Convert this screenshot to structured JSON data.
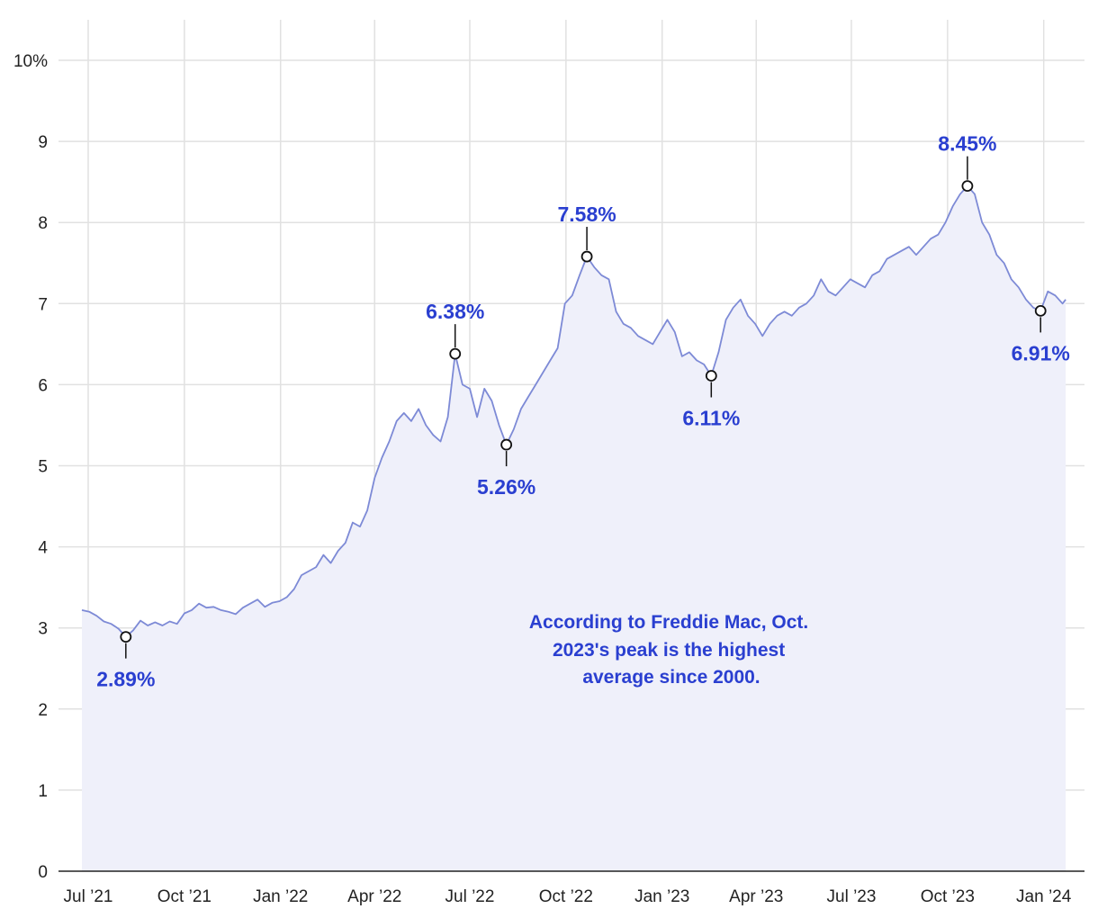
{
  "colors": {
    "accent": "#2a3fd0",
    "line": "#7d8ad6",
    "area": "#eff0fa",
    "grid": "#e1e1e1",
    "axis": "#222222",
    "marker_stroke": "#111111"
  },
  "chart_data": {
    "type": "area",
    "title": "",
    "xlabel": "",
    "ylabel": "",
    "ylim": [
      0,
      10
    ],
    "xlim": [
      "2021-06-24",
      "2024-01-24"
    ],
    "grid": true,
    "y_ticks": [
      {
        "value": 0,
        "label": "0"
      },
      {
        "value": 1,
        "label": "1"
      },
      {
        "value": 2,
        "label": "2"
      },
      {
        "value": 3,
        "label": "3"
      },
      {
        "value": 4,
        "label": "4"
      },
      {
        "value": 5,
        "label": "5"
      },
      {
        "value": 6,
        "label": "6"
      },
      {
        "value": 7,
        "label": "7"
      },
      {
        "value": 8,
        "label": "8"
      },
      {
        "value": 9,
        "label": "9"
      },
      {
        "value": 10,
        "label": "10%"
      }
    ],
    "x_ticks": [
      {
        "date": "2021-07-01",
        "label": "Jul ’21"
      },
      {
        "date": "2021-10-01",
        "label": "Oct ’21"
      },
      {
        "date": "2022-01-01",
        "label": "Jan ’22"
      },
      {
        "date": "2022-04-01",
        "label": "Apr ’22"
      },
      {
        "date": "2022-07-01",
        "label": "Jul ’22"
      },
      {
        "date": "2022-10-01",
        "label": "Oct ’22"
      },
      {
        "date": "2023-01-01",
        "label": "Jan ’23"
      },
      {
        "date": "2023-04-01",
        "label": "Apr ’23"
      },
      {
        "date": "2023-07-01",
        "label": "Jul ’23"
      },
      {
        "date": "2023-10-01",
        "label": "Oct ’23"
      },
      {
        "date": "2024-01-01",
        "label": "Jan ’24"
      }
    ],
    "series": [
      {
        "points": [
          [
            "2021-06-25",
            3.22
          ],
          [
            "2021-07-02",
            3.2
          ],
          [
            "2021-07-09",
            3.15
          ],
          [
            "2021-07-16",
            3.08
          ],
          [
            "2021-07-23",
            3.05
          ],
          [
            "2021-07-30",
            2.99
          ],
          [
            "2021-08-06",
            2.89
          ],
          [
            "2021-08-13",
            2.97
          ],
          [
            "2021-08-20",
            3.09
          ],
          [
            "2021-08-27",
            3.03
          ],
          [
            "2021-09-03",
            3.07
          ],
          [
            "2021-09-10",
            3.03
          ],
          [
            "2021-09-17",
            3.08
          ],
          [
            "2021-09-24",
            3.05
          ],
          [
            "2021-10-01",
            3.18
          ],
          [
            "2021-10-08",
            3.22
          ],
          [
            "2021-10-15",
            3.3
          ],
          [
            "2021-10-22",
            3.25
          ],
          [
            "2021-10-29",
            3.26
          ],
          [
            "2021-11-05",
            3.22
          ],
          [
            "2021-11-12",
            3.2
          ],
          [
            "2021-11-19",
            3.17
          ],
          [
            "2021-11-26",
            3.25
          ],
          [
            "2021-12-03",
            3.3
          ],
          [
            "2021-12-10",
            3.35
          ],
          [
            "2021-12-17",
            3.26
          ],
          [
            "2021-12-24",
            3.31
          ],
          [
            "2021-12-31",
            3.33
          ],
          [
            "2022-01-07",
            3.38
          ],
          [
            "2022-01-14",
            3.48
          ],
          [
            "2022-01-21",
            3.65
          ],
          [
            "2022-01-28",
            3.7
          ],
          [
            "2022-02-04",
            3.75
          ],
          [
            "2022-02-11",
            3.9
          ],
          [
            "2022-02-18",
            3.8
          ],
          [
            "2022-02-25",
            3.95
          ],
          [
            "2022-03-04",
            4.05
          ],
          [
            "2022-03-11",
            4.3
          ],
          [
            "2022-03-18",
            4.25
          ],
          [
            "2022-03-25",
            4.45
          ],
          [
            "2022-04-01",
            4.85
          ],
          [
            "2022-04-08",
            5.1
          ],
          [
            "2022-04-15",
            5.3
          ],
          [
            "2022-04-22",
            5.55
          ],
          [
            "2022-04-29",
            5.65
          ],
          [
            "2022-05-06",
            5.55
          ],
          [
            "2022-05-13",
            5.7
          ],
          [
            "2022-05-20",
            5.5
          ],
          [
            "2022-05-27",
            5.38
          ],
          [
            "2022-06-03",
            5.3
          ],
          [
            "2022-06-10",
            5.6
          ],
          [
            "2022-06-17",
            6.38
          ],
          [
            "2022-06-24",
            6.0
          ],
          [
            "2022-07-01",
            5.95
          ],
          [
            "2022-07-08",
            5.6
          ],
          [
            "2022-07-15",
            5.95
          ],
          [
            "2022-07-22",
            5.8
          ],
          [
            "2022-07-29",
            5.5
          ],
          [
            "2022-08-05",
            5.26
          ],
          [
            "2022-08-12",
            5.45
          ],
          [
            "2022-08-19",
            5.7
          ],
          [
            "2022-08-26",
            5.85
          ],
          [
            "2022-09-02",
            6.0
          ],
          [
            "2022-09-09",
            6.15
          ],
          [
            "2022-09-16",
            6.3
          ],
          [
            "2022-09-23",
            6.45
          ],
          [
            "2022-09-30",
            7.0
          ],
          [
            "2022-10-07",
            7.1
          ],
          [
            "2022-10-14",
            7.35
          ],
          [
            "2022-10-21",
            7.58
          ],
          [
            "2022-10-28",
            7.45
          ],
          [
            "2022-11-04",
            7.35
          ],
          [
            "2022-11-11",
            7.3
          ],
          [
            "2022-11-18",
            6.9
          ],
          [
            "2022-11-25",
            6.75
          ],
          [
            "2022-12-02",
            6.7
          ],
          [
            "2022-12-09",
            6.6
          ],
          [
            "2022-12-16",
            6.55
          ],
          [
            "2022-12-23",
            6.5
          ],
          [
            "2022-12-30",
            6.65
          ],
          [
            "2023-01-06",
            6.8
          ],
          [
            "2023-01-13",
            6.65
          ],
          [
            "2023-01-20",
            6.35
          ],
          [
            "2023-01-27",
            6.4
          ],
          [
            "2023-02-03",
            6.3
          ],
          [
            "2023-02-10",
            6.25
          ],
          [
            "2023-02-17",
            6.11
          ],
          [
            "2023-02-24",
            6.4
          ],
          [
            "2023-03-03",
            6.8
          ],
          [
            "2023-03-10",
            6.95
          ],
          [
            "2023-03-17",
            7.05
          ],
          [
            "2023-03-24",
            6.85
          ],
          [
            "2023-03-31",
            6.75
          ],
          [
            "2023-04-07",
            6.6
          ],
          [
            "2023-04-14",
            6.75
          ],
          [
            "2023-04-21",
            6.85
          ],
          [
            "2023-04-28",
            6.9
          ],
          [
            "2023-05-05",
            6.85
          ],
          [
            "2023-05-12",
            6.95
          ],
          [
            "2023-05-19",
            7.0
          ],
          [
            "2023-05-26",
            7.1
          ],
          [
            "2023-06-02",
            7.3
          ],
          [
            "2023-06-09",
            7.15
          ],
          [
            "2023-06-16",
            7.1
          ],
          [
            "2023-06-23",
            7.2
          ],
          [
            "2023-06-30",
            7.3
          ],
          [
            "2023-07-07",
            7.25
          ],
          [
            "2023-07-14",
            7.2
          ],
          [
            "2023-07-21",
            7.35
          ],
          [
            "2023-07-28",
            7.4
          ],
          [
            "2023-08-04",
            7.55
          ],
          [
            "2023-08-11",
            7.6
          ],
          [
            "2023-08-18",
            7.65
          ],
          [
            "2023-08-25",
            7.7
          ],
          [
            "2023-09-01",
            7.6
          ],
          [
            "2023-09-08",
            7.7
          ],
          [
            "2023-09-15",
            7.8
          ],
          [
            "2023-09-22",
            7.85
          ],
          [
            "2023-09-29",
            8.0
          ],
          [
            "2023-10-06",
            8.2
          ],
          [
            "2023-10-13",
            8.35
          ],
          [
            "2023-10-20",
            8.45
          ],
          [
            "2023-10-27",
            8.35
          ],
          [
            "2023-11-03",
            8.0
          ],
          [
            "2023-11-10",
            7.85
          ],
          [
            "2023-11-17",
            7.6
          ],
          [
            "2023-11-24",
            7.5
          ],
          [
            "2023-12-01",
            7.3
          ],
          [
            "2023-12-08",
            7.2
          ],
          [
            "2023-12-15",
            7.05
          ],
          [
            "2023-12-22",
            6.95
          ],
          [
            "2023-12-29",
            6.91
          ],
          [
            "2024-01-05",
            7.15
          ],
          [
            "2024-01-12",
            7.1
          ],
          [
            "2024-01-19",
            7.0
          ],
          [
            "2024-01-22",
            7.05
          ]
        ]
      }
    ],
    "annotations": [
      {
        "date": "2021-08-06",
        "value": 2.89,
        "label": "2.89%",
        "position": "below"
      },
      {
        "date": "2022-06-17",
        "value": 6.38,
        "label": "6.38%",
        "position": "above"
      },
      {
        "date": "2022-08-05",
        "value": 5.26,
        "label": "5.26%",
        "position": "below"
      },
      {
        "date": "2022-10-21",
        "value": 7.58,
        "label": "7.58%",
        "position": "above"
      },
      {
        "date": "2023-02-17",
        "value": 6.11,
        "label": "6.11%",
        "position": "below"
      },
      {
        "date": "2023-10-20",
        "value": 8.45,
        "label": "8.45%",
        "position": "above"
      },
      {
        "date": "2023-12-29",
        "value": 6.91,
        "label": "6.91%",
        "position": "below"
      }
    ],
    "note": [
      "According to Freddie Mac, Oct.",
      "2023's peak is the highest",
      "average since 2000."
    ]
  }
}
